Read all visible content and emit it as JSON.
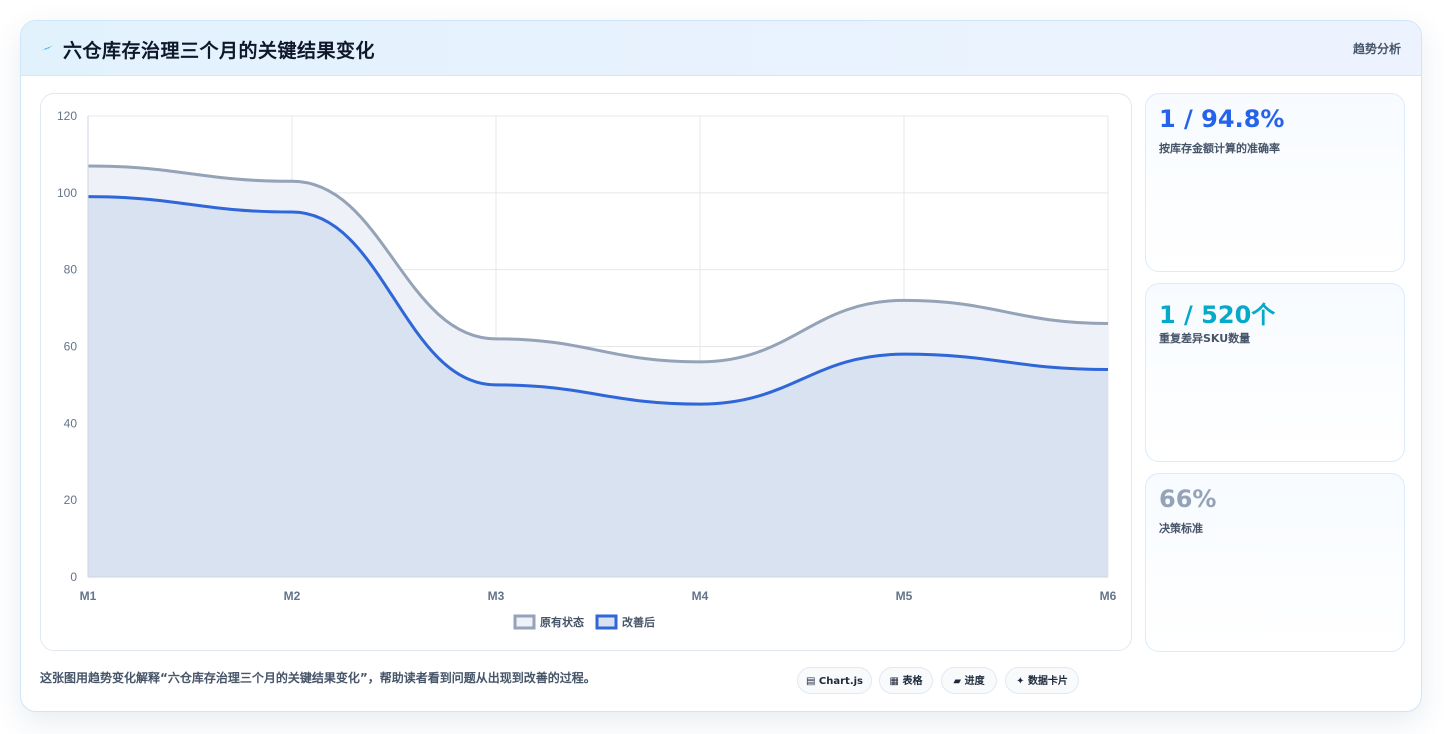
{
  "header": {
    "icon": "spark-icon",
    "title": "六仓库存治理三个月的关键结果变化",
    "tag": "趋势分析"
  },
  "chart_data": {
    "type": "area",
    "categories": [
      "M1",
      "M2",
      "M3",
      "M4",
      "M5",
      "M6"
    ],
    "series": [
      {
        "name": "原有状态",
        "values": [
          107,
          103,
          62,
          56,
          72,
          66
        ],
        "color": "#94a3b8",
        "fill": "#eef1f7"
      },
      {
        "name": "改善后",
        "values": [
          99,
          95,
          50,
          45,
          58,
          54
        ],
        "color": "#2f66d8",
        "fill": "#d8e2f0"
      }
    ],
    "ylim": [
      0,
      120
    ],
    "yticks": [
      0,
      20,
      40,
      60,
      80,
      100,
      120
    ],
    "grid": true,
    "legend": "bottom-center"
  },
  "metrics": [
    {
      "value": "1 / 94.8%",
      "label": "按库存金额计算的准确率",
      "color": "#2563eb"
    },
    {
      "value": "1 / 520个",
      "label": "重复差异SKU数量",
      "color": "#06a9c9"
    },
    {
      "value": "66%",
      "label": "决策标准",
      "color": "#94a3b8"
    }
  ],
  "footer": {
    "description": "这张图用趋势变化解释“六仓库存治理三个月的关键结果变化”，帮助读者看到问题从出现到改善的过程。",
    "chips": [
      {
        "icon": "▤",
        "label": "Chart.js"
      },
      {
        "icon": "▦",
        "label": "表格"
      },
      {
        "icon": "▰",
        "label": "进度"
      },
      {
        "icon": "✦",
        "label": "数据卡片"
      }
    ]
  }
}
